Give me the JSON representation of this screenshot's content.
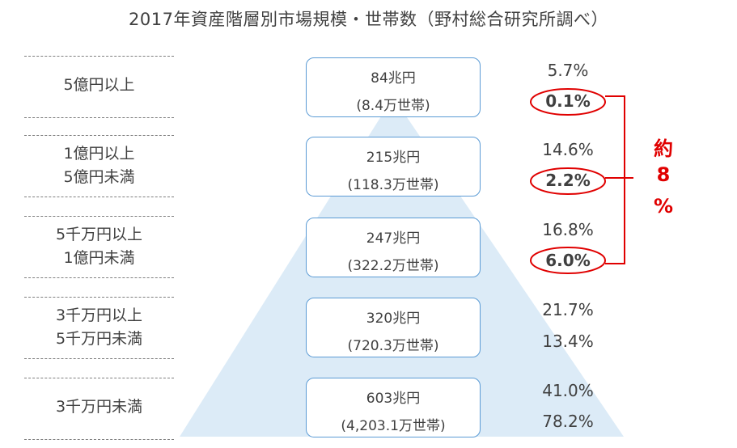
{
  "title": "2017年資産階層別市場規模・世帯数（野村総合研究所調べ）",
  "colors": {
    "accent_red": "#e00000",
    "box_border": "#5b9bd5",
    "pyramid_fill": "#dcebf7"
  },
  "chart_data": {
    "type": "table",
    "title": "2017年資産階層別市場規模・世帯数（野村総合研究所調べ）",
    "rows": [
      {
        "tier_line1": "5億円以上",
        "tier_line2": "",
        "market": "84兆円",
        "households": "(8.4万世帯)",
        "market_share": "5.7%",
        "household_share": "0.1%",
        "highlight": true
      },
      {
        "tier_line1": "1億円以上",
        "tier_line2": "5億円未満",
        "market": "215兆円",
        "households": "(118.3万世帯)",
        "market_share": "14.6%",
        "household_share": "2.2%",
        "highlight": true
      },
      {
        "tier_line1": "5千万円以上",
        "tier_line2": "1億円未満",
        "market": "247兆円",
        "households": "(322.2万世帯)",
        "market_share": "16.8%",
        "household_share": "6.0%",
        "highlight": true
      },
      {
        "tier_line1": "3千万円以上",
        "tier_line2": "5千万円未満",
        "market": "320兆円",
        "households": "(720.3万世帯)",
        "market_share": "21.7%",
        "household_share": "13.4%",
        "highlight": false
      },
      {
        "tier_line1": "3千万円未満",
        "tier_line2": "",
        "market": "603兆円",
        "households": "(4,203.1万世帯)",
        "market_share": "41.0%",
        "household_share": "78.2%",
        "highlight": false
      }
    ],
    "annotation": {
      "chars": [
        "約",
        "8",
        "%"
      ],
      "value": "約8%"
    }
  }
}
